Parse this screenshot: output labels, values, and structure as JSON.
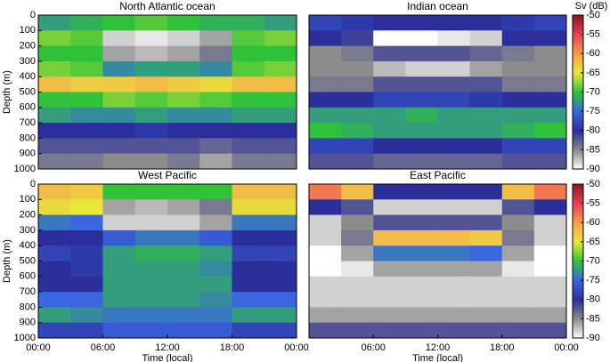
{
  "chart_data": [
    {
      "type": "heatmap",
      "title": "North Atlantic ocean",
      "ylabel": "Depth (m)",
      "x_bins": [
        0,
        3,
        6,
        9,
        12,
        15,
        18,
        21,
        24
      ],
      "depth_bins": [
        0,
        100,
        200,
        300,
        400,
        500,
        600,
        700,
        800,
        900,
        1000
      ],
      "xlim": [
        0,
        24
      ],
      "ylim": [
        1000,
        0
      ],
      "yticks": [
        0,
        100,
        200,
        300,
        400,
        500,
        600,
        700,
        800,
        900,
        1000
      ],
      "values": [
        [
          -72,
          -71,
          -70,
          -69,
          -70,
          -71,
          -71,
          -72
        ],
        [
          -68,
          -69,
          -88,
          -89,
          -88,
          -86,
          -69,
          -68
        ],
        [
          -70,
          -70,
          -86,
          -87,
          -86,
          -84,
          -70,
          -70
        ],
        [
          -68,
          -69,
          -73,
          -72,
          -72,
          -73,
          -69,
          -68
        ],
        [
          -62,
          -63,
          -63,
          -62,
          -63,
          -64,
          -62,
          -62
        ],
        [
          -70,
          -70,
          -68,
          -69,
          -68,
          -69,
          -70,
          -70
        ],
        [
          -72,
          -73,
          -73,
          -72,
          -73,
          -73,
          -72,
          -72
        ],
        [
          -80,
          -80,
          -80,
          -79,
          -80,
          -80,
          -80,
          -80
        ],
        [
          -82,
          -82,
          -82,
          -82,
          -82,
          -83,
          -82,
          -82
        ],
        [
          -84,
          -84,
          -85,
          -85,
          -84,
          -86,
          -84,
          -84
        ]
      ]
    },
    {
      "type": "heatmap",
      "title": "Indian ocean",
      "x_bins": [
        0,
        3,
        6,
        9,
        12,
        15,
        18,
        21,
        24
      ],
      "depth_bins": [
        0,
        100,
        200,
        300,
        400,
        500,
        600,
        700,
        800,
        900,
        1000
      ],
      "xlim": [
        0,
        24
      ],
      "ylim": [
        1000,
        0
      ],
      "colorbar": {
        "label": "Sv (dB)",
        "lim": [
          -90,
          -50
        ],
        "ticks": [
          -50,
          -55,
          -60,
          -65,
          -70,
          -75,
          -80,
          -85,
          -90
        ]
      },
      "colorscale": [
        "#ffffff",
        "#8c8c8c",
        "#2b2f9c",
        "#3a66e0",
        "#2fc13a",
        "#e8e83a",
        "#f8a04a",
        "#e8405a",
        "#8a1a1a"
      ],
      "values": [
        [
          -78,
          -79,
          -80,
          -80,
          -80,
          -80,
          -79,
          -78
        ],
        [
          -80,
          -81,
          -90,
          -90,
          -89,
          -88,
          -80,
          -80
        ],
        [
          -85,
          -84,
          -82,
          -82,
          -82,
          -83,
          -84,
          -85
        ],
        [
          -85,
          -85,
          -87,
          -88,
          -88,
          -86,
          -85,
          -85
        ],
        [
          -84,
          -84,
          -82,
          -82,
          -82,
          -82,
          -84,
          -84
        ],
        [
          -80,
          -80,
          -78,
          -78,
          -78,
          -79,
          -80,
          -80
        ],
        [
          -72,
          -72,
          -72,
          -71,
          -72,
          -72,
          -72,
          -72
        ],
        [
          -70,
          -71,
          -72,
          -72,
          -72,
          -72,
          -71,
          -70
        ],
        [
          -78,
          -78,
          -80,
          -80,
          -80,
          -80,
          -78,
          -78
        ],
        [
          -82,
          -82,
          -83,
          -83,
          -83,
          -83,
          -82,
          -82
        ]
      ]
    },
    {
      "type": "heatmap",
      "title": "West Pacific",
      "ylabel": "Depth (m)",
      "xlabel": "Time (local)",
      "x_bins": [
        0,
        3,
        6,
        9,
        12,
        15,
        18,
        21,
        24
      ],
      "depth_bins": [
        0,
        100,
        200,
        300,
        400,
        500,
        600,
        700,
        800,
        900,
        1000
      ],
      "xlim": [
        0,
        24
      ],
      "ylim": [
        1000,
        0
      ],
      "yticks": [
        0,
        100,
        200,
        300,
        400,
        500,
        600,
        700,
        800,
        900,
        1000
      ],
      "xticks": [
        {
          "value": 0,
          "label": "00:00"
        },
        {
          "value": 6,
          "label": "06:00"
        },
        {
          "value": 12,
          "label": "12:00"
        },
        {
          "value": 18,
          "label": "18:00"
        },
        {
          "value": 24,
          "label": "00:00"
        }
      ],
      "values": [
        [
          -62,
          -63,
          -70,
          -70,
          -70,
          -70,
          -62,
          -62
        ],
        [
          -64,
          -65,
          -86,
          -87,
          -86,
          -84,
          -64,
          -64
        ],
        [
          -74,
          -75,
          -88,
          -88,
          -88,
          -86,
          -74,
          -74
        ],
        [
          -80,
          -80,
          -76,
          -74,
          -74,
          -76,
          -80,
          -80
        ],
        [
          -78,
          -79,
          -72,
          -71,
          -71,
          -72,
          -78,
          -78
        ],
        [
          -80,
          -79,
          -72,
          -72,
          -72,
          -73,
          -80,
          -80
        ],
        [
          -80,
          -80,
          -72,
          -72,
          -72,
          -72,
          -80,
          -80
        ],
        [
          -75,
          -75,
          -72,
          -72,
          -72,
          -73,
          -75,
          -75
        ],
        [
          -72,
          -73,
          -74,
          -74,
          -74,
          -74,
          -72,
          -72
        ],
        [
          -78,
          -78,
          -76,
          -76,
          -76,
          -76,
          -78,
          -78
        ]
      ]
    },
    {
      "type": "heatmap",
      "title": "East Pacific",
      "xlabel": "Time (local)",
      "x_bins": [
        0,
        3,
        6,
        9,
        12,
        15,
        18,
        21,
        24
      ],
      "depth_bins": [
        0,
        100,
        200,
        300,
        400,
        500,
        600,
        700,
        800,
        900,
        1000
      ],
      "xlim": [
        0,
        24
      ],
      "ylim": [
        1000,
        0
      ],
      "xticks": [
        {
          "value": 6,
          "label": "06:00"
        },
        {
          "value": 12,
          "label": "12:00"
        },
        {
          "value": 18,
          "label": "18:00"
        },
        {
          "value": 24,
          "label": "00:00"
        }
      ],
      "colorbar": {
        "lim": [
          -90,
          -50
        ],
        "ticks": [
          -50,
          -55,
          -60,
          -65,
          -70,
          -75,
          -80,
          -85,
          -90
        ]
      },
      "colorscale": [
        "#ffffff",
        "#8c8c8c",
        "#2b2f9c",
        "#3a66e0",
        "#2fc13a",
        "#e8e83a",
        "#f8a04a",
        "#e8405a",
        "#8a1a1a"
      ],
      "values": [
        [
          -58,
          -62,
          -80,
          -80,
          -80,
          -80,
          -62,
          -58
        ],
        [
          -80,
          -82,
          -88,
          -88,
          -88,
          -88,
          -82,
          -80
        ],
        [
          -88,
          -85,
          -82,
          -82,
          -82,
          -82,
          -85,
          -88
        ],
        [
          -88,
          -84,
          -62,
          -62,
          -62,
          -63,
          -84,
          -88
        ],
        [
          -90,
          -86,
          -74,
          -74,
          -74,
          -75,
          -86,
          -90
        ],
        [
          -90,
          -89,
          -86,
          -86,
          -86,
          -86,
          -89,
          -90
        ],
        [
          -88,
          -88,
          -88,
          -88,
          -88,
          -88,
          -88,
          -88
        ],
        [
          -88,
          -88,
          -88,
          -88,
          -88,
          -88,
          -88,
          -88
        ],
        [
          -86,
          -86,
          -86,
          -86,
          -86,
          -86,
          -86,
          -86
        ],
        [
          -82,
          -82,
          -82,
          -82,
          -82,
          -82,
          -82,
          -82
        ]
      ]
    }
  ]
}
